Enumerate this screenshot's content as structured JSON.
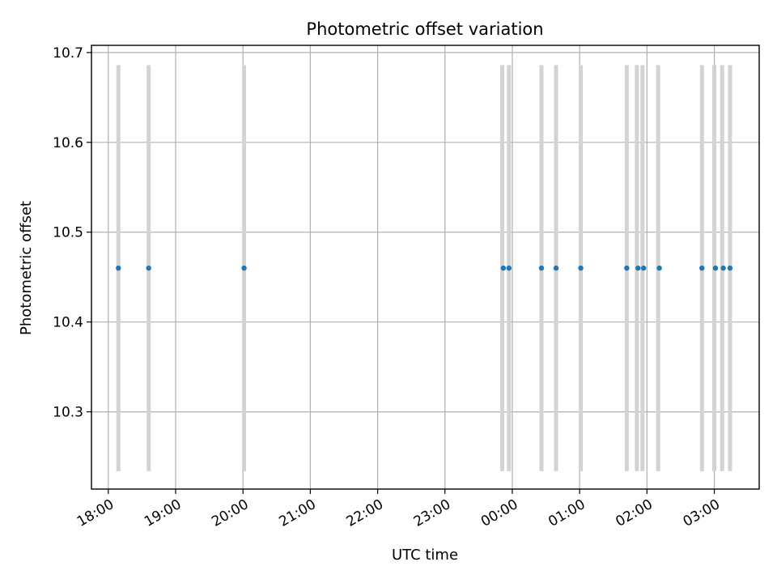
{
  "chart_data": {
    "type": "scatter",
    "title": "Photometric offset variation",
    "xlabel": "UTC time",
    "ylabel": "Photometric offset",
    "x_tick_labels": [
      "18:00",
      "19:00",
      "20:00",
      "21:00",
      "22:00",
      "23:00",
      "00:00",
      "01:00",
      "02:00",
      "03:00"
    ],
    "y_tick_labels": [
      "10.3",
      "10.4",
      "10.5",
      "10.6",
      "10.7"
    ],
    "xlim": [
      "17:45",
      "03:40"
    ],
    "ylim": [
      10.214,
      10.708
    ],
    "grid": true,
    "colors": {
      "points": "#1f77b4",
      "bands": "#d3d3d3",
      "grid": "#b0b0b0"
    },
    "band_range": [
      10.234,
      10.686
    ],
    "points": [
      {
        "x": "18:09",
        "y": 10.46
      },
      {
        "x": "18:36",
        "y": 10.46
      },
      {
        "x": "20:01",
        "y": 10.46
      },
      {
        "x": "23:52",
        "y": 10.46
      },
      {
        "x": "23:57",
        "y": 10.46
      },
      {
        "x": "00:26",
        "y": 10.46
      },
      {
        "x": "00:39",
        "y": 10.46
      },
      {
        "x": "01:01",
        "y": 10.46
      },
      {
        "x": "01:42",
        "y": 10.46
      },
      {
        "x": "01:52",
        "y": 10.46
      },
      {
        "x": "01:57",
        "y": 10.46
      },
      {
        "x": "02:11",
        "y": 10.46
      },
      {
        "x": "02:49",
        "y": 10.46
      },
      {
        "x": "03:01",
        "y": 10.46
      },
      {
        "x": "03:08",
        "y": 10.46
      },
      {
        "x": "03:14",
        "y": 10.46
      }
    ],
    "bands": [
      {
        "x": "18:09"
      },
      {
        "x": "18:36"
      },
      {
        "x": "20:01"
      },
      {
        "x": "23:51"
      },
      {
        "x": "23:57"
      },
      {
        "x": "00:26"
      },
      {
        "x": "00:39"
      },
      {
        "x": "01:01"
      },
      {
        "x": "01:42"
      },
      {
        "x": "01:51"
      },
      {
        "x": "01:56"
      },
      {
        "x": "02:10"
      },
      {
        "x": "02:49"
      },
      {
        "x": "03:00"
      },
      {
        "x": "03:07"
      },
      {
        "x": "03:14"
      }
    ]
  }
}
